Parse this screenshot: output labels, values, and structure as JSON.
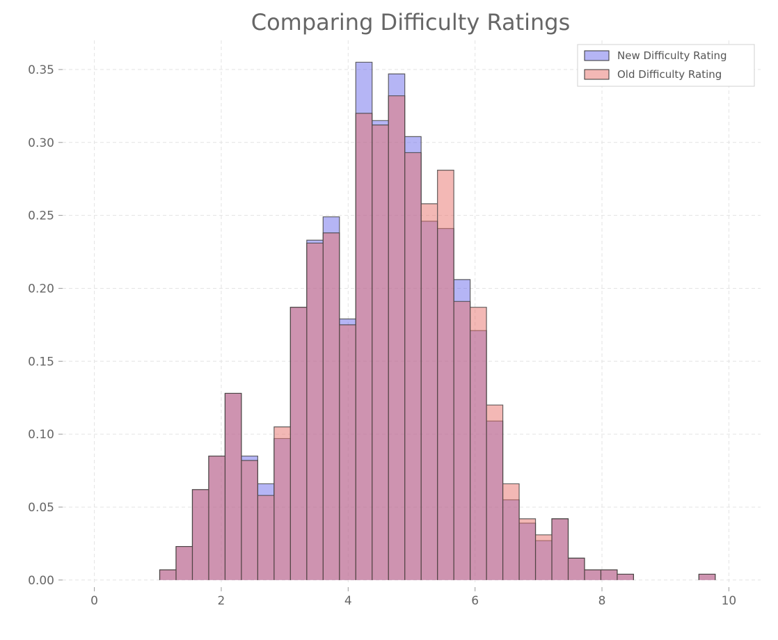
{
  "chart_data": {
    "type": "histogram",
    "title": "Comparing Difficulty Ratings",
    "xlabel": "",
    "ylabel": "",
    "xlim": [
      -0.5,
      10.5
    ],
    "ylim": [
      -0.002,
      0.37
    ],
    "x_ticks": [
      0,
      2,
      4,
      6,
      8,
      10
    ],
    "y_ticks": [
      0.0,
      0.05,
      0.1,
      0.15,
      0.2,
      0.25,
      0.3,
      0.35
    ],
    "x_tick_labels": [
      "0",
      "2",
      "4",
      "6",
      "8",
      "10"
    ],
    "y_tick_labels": [
      "0.00",
      "0.05",
      "0.10",
      "0.15",
      "0.20",
      "0.25",
      "0.30",
      "0.35"
    ],
    "grid": true,
    "legend_position": "top-right",
    "bin_width": 0.2575,
    "bin_starts": [
      1.03,
      1.2875,
      1.545,
      1.8025,
      2.06,
      2.3175,
      2.575,
      2.8325,
      3.09,
      3.3475,
      3.605,
      3.8625,
      4.12,
      4.3775,
      4.635,
      4.8925,
      5.15,
      5.4075,
      5.665,
      5.9225,
      6.18,
      6.4375,
      6.695,
      6.9525,
      7.21,
      7.4675,
      7.725,
      7.9825,
      8.24,
      8.4975,
      8.755,
      9.0125,
      9.27,
      9.5275
    ],
    "series": [
      {
        "name": "New Difficulty Rating",
        "color": "#5a5ae8",
        "opacity": 0.45,
        "values": [
          0.007,
          0.023,
          0.062,
          0.085,
          0.128,
          0.085,
          0.066,
          0.097,
          0.187,
          0.233,
          0.249,
          0.179,
          0.355,
          0.315,
          0.347,
          0.304,
          0.246,
          0.241,
          0.206,
          0.171,
          0.109,
          0.055,
          0.039,
          0.027,
          0.042,
          0.015,
          0.007,
          0.007,
          0.004,
          0.0,
          0.0,
          0.0,
          0.0,
          0.004
        ]
      },
      {
        "name": "Old Difficulty Rating",
        "color": "#e8726c",
        "opacity": 0.5,
        "values": [
          0.007,
          0.023,
          0.062,
          0.085,
          0.128,
          0.082,
          0.058,
          0.105,
          0.187,
          0.231,
          0.238,
          0.175,
          0.32,
          0.312,
          0.332,
          0.293,
          0.258,
          0.281,
          0.191,
          0.187,
          0.12,
          0.066,
          0.042,
          0.031,
          0.042,
          0.015,
          0.007,
          0.007,
          0.004,
          0.0,
          0.0,
          0.0,
          0.0,
          0.004
        ]
      }
    ]
  }
}
